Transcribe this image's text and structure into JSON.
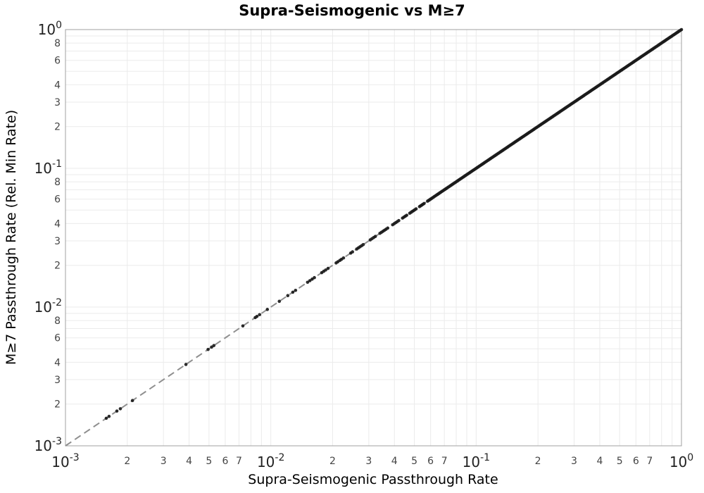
{
  "chart_data": {
    "type": "scatter",
    "title": "Supra-Seismogenic vs M≥7",
    "xlabel": "Supra-Seismogenic Passthrough Rate",
    "ylabel": "M≥7 Passthrough Rate (Rel. Min Rate)",
    "x_scale": "log",
    "y_scale": "log",
    "xlim": [
      0.001,
      1.0
    ],
    "ylim": [
      0.001,
      1.0
    ],
    "xlog_range": [
      -3,
      0
    ],
    "ylog_range": [
      -3,
      0
    ],
    "grid": true,
    "legend": "none",
    "relation": "y = x for every point (points lie exactly on the identity line)",
    "identity_line": {
      "from": 0.001,
      "to": 1.0,
      "style": "dashed",
      "color": "#8f8f8f"
    },
    "points_x": [
      0.00158,
      0.00163,
      0.00178,
      0.00185,
      0.00212,
      0.00386,
      0.00495,
      0.00515,
      0.00528,
      0.00731,
      0.0084,
      0.00856,
      0.00882,
      0.00962,
      0.011,
      0.0121,
      0.0128,
      0.0132,
      0.0151,
      0.0155,
      0.0159,
      0.0163,
      0.0177,
      0.0181,
      0.0185,
      0.019,
      0.0208,
      0.0212,
      0.0217,
      0.0221,
      0.0226,
      0.0245,
      0.025,
      0.0262,
      0.0267,
      0.0272,
      0.0277,
      0.0282,
      0.0305,
      0.0311,
      0.0317,
      0.0323,
      0.034,
      0.0346,
      0.0352,
      0.0358,
      0.0364,
      0.0371,
      0.0392,
      0.0399,
      0.0406,
      0.0413,
      0.042,
      0.0438,
      0.0445,
      0.0452,
      0.0459,
      0.0475,
      0.0482,
      0.0489,
      0.0496,
      0.0503,
      0.051,
      0.053,
      0.0537,
      0.0544,
      0.0551,
      0.0558,
      0.058,
      0.0587,
      0.0594,
      0.0601,
      0.0608,
      0.0616,
      0.0624,
      0.0632,
      0.064,
      0.0648
    ],
    "dense_band": {
      "x_min": 0.065,
      "x_max": 1.0,
      "count": 230,
      "spacing": "log-uniform",
      "note": "points overlap into a visually solid black band along y = x"
    },
    "x_ticks": {
      "major_exponents": [
        -3,
        -2,
        -1,
        0
      ],
      "labeled_minor_digits": [
        2,
        3,
        4,
        5,
        6,
        7
      ],
      "grid_digits": [
        2,
        3,
        4,
        5,
        6,
        7,
        8,
        9
      ]
    },
    "y_ticks": {
      "major_exponents": [
        0,
        -1,
        -2,
        -3
      ],
      "labeled_minor_digits": [
        8,
        6,
        4,
        3,
        2
      ],
      "grid_digits": [
        2,
        3,
        4,
        5,
        6,
        7,
        8,
        9
      ]
    },
    "style": {
      "marker_color": "#1a1a1a",
      "marker_radius_px": 2.3,
      "marker_opacity": 0.92,
      "grid_color": "#ebebeb",
      "axis_line_color": "#a0a0a0",
      "background": "#ffffff",
      "major_tick_label_color": "#222222",
      "minor_tick_label_color": "#444444"
    }
  }
}
